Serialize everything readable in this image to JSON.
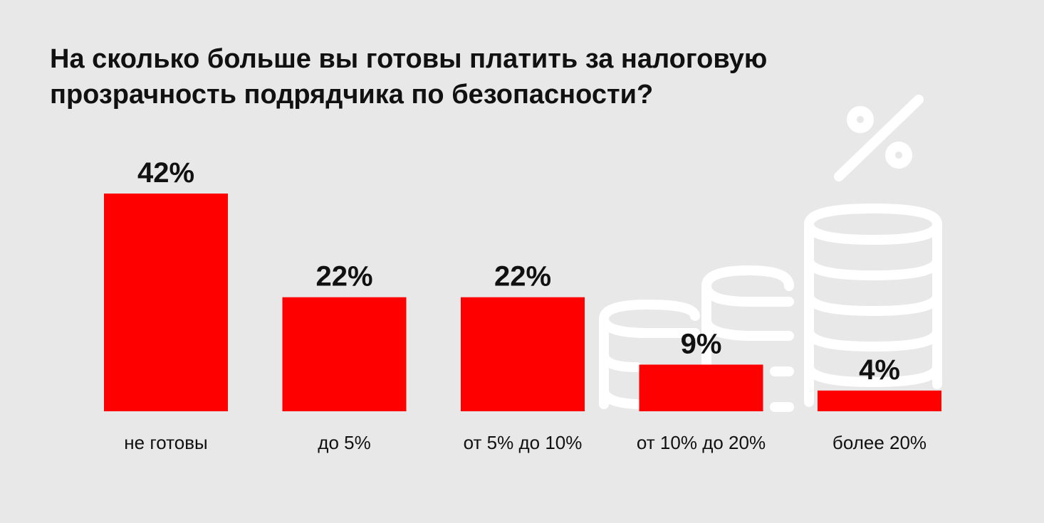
{
  "title_lines": [
    "На сколько больше вы готовы платить за налоговую",
    "прозрачность подрядчика по безопасности?"
  ],
  "colors": {
    "background": "#e8e8e8",
    "bar": "#ff0000",
    "text": "#111111",
    "decoration": "#ffffff"
  },
  "decoration": {
    "icon": "coins-stack-percent-icon"
  },
  "chart_data": {
    "type": "bar",
    "title": "На сколько больше вы готовы платить за налоговую прозрачность подрядчика по безопасности?",
    "categories": [
      "не готовы",
      "до 5%",
      "от 5% до 10%",
      "от 10% до 20%",
      "более 20%"
    ],
    "values": [
      42,
      22,
      22,
      9,
      4
    ],
    "value_labels": [
      "42%",
      "22%",
      "22%",
      "9%",
      "4%"
    ],
    "unit": "%",
    "ylim": [
      0,
      42
    ],
    "grid": false,
    "legend": "none"
  }
}
